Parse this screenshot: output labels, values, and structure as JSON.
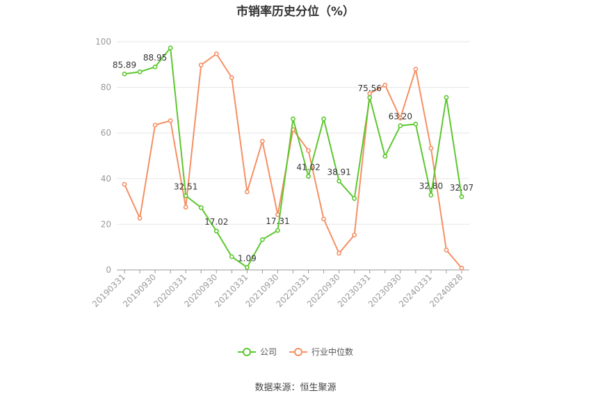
{
  "chart_data": {
    "type": "line",
    "title": "市销率历史分位（%）",
    "source": "数据来源：恒生聚源",
    "ylim": [
      0,
      100
    ],
    "yticks": [
      "0",
      "20",
      "40",
      "60",
      "80",
      "100"
    ],
    "x": [
      "20190331",
      "20190630",
      "20190930",
      "20191231",
      "20200331",
      "20200630",
      "20200930",
      "20201231",
      "20210331",
      "20210630",
      "20210930",
      "20211231",
      "20220331",
      "20220630",
      "20220930",
      "20221231",
      "20230331",
      "20230630",
      "20230930",
      "20231231",
      "20240331",
      "20240630",
      "20240828"
    ],
    "xtick_labels": [
      "20190331",
      "20190930",
      "20200331",
      "20200930",
      "20210331",
      "20210930",
      "20220331",
      "20220930",
      "20230331",
      "20230930",
      "20240331",
      "20240828"
    ],
    "series": [
      {
        "name": "公司",
        "color": "#5cc72d",
        "values": [
          85.89,
          86.8,
          88.95,
          97.3,
          32.51,
          27.3,
          17.02,
          5.8,
          1.09,
          13.3,
          17.31,
          66.2,
          41.02,
          66.2,
          38.91,
          31.3,
          75.56,
          49.8,
          63.2,
          63.9,
          32.8,
          75.6,
          32.07
        ],
        "labels": {
          "0": "85.89",
          "2": "88.95",
          "4": "32.51",
          "6": "17.02",
          "8": "1.09",
          "10": "17.31",
          "12": "41.02",
          "14": "38.91",
          "16": "75.56",
          "18": "63.20",
          "20": "32.80",
          "22": "32.07"
        }
      },
      {
        "name": "行业中位数",
        "color": "#f58f63",
        "values": [
          37.5,
          22.7,
          63.5,
          65.4,
          27.5,
          89.8,
          94.7,
          84.3,
          34.2,
          56.4,
          24.2,
          61.5,
          52.3,
          22.3,
          7.3,
          15.3,
          77.3,
          81.0,
          66.5,
          88.0,
          53.3,
          8.7,
          0.8
        ],
        "labels": {}
      }
    ],
    "grid": true,
    "legend_position": "bottom"
  }
}
